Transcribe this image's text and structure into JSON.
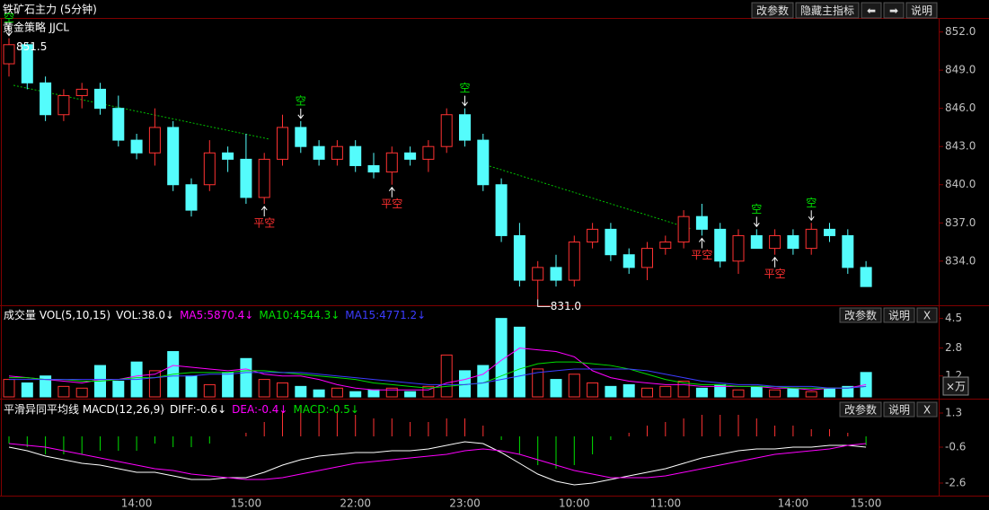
{
  "app": {
    "title": "铁矿石主力 (5分钟)",
    "strategy": "黄金策略 JJCL",
    "buttons": [
      "改参数",
      "隐藏主指标",
      "⬅",
      "➡",
      "说明"
    ]
  },
  "chart_data": [
    {
      "type": "candlestick",
      "open": [
        849.5,
        851,
        848,
        845.5,
        847,
        847.5,
        846,
        843.5,
        842.5,
        844.5,
        840,
        840,
        842.5,
        842,
        839,
        842,
        844.5,
        843,
        842,
        843,
        841.5,
        841,
        842.5,
        842,
        843,
        845.5,
        843.5,
        840,
        836,
        832.5,
        833.5,
        832.5,
        835.5,
        836.5,
        834.5,
        833.5,
        835,
        835.5,
        837.5,
        836.5,
        834,
        836,
        835,
        836,
        835,
        836.5,
        836,
        833.5
      ],
      "high": [
        851.5,
        851.2,
        848.5,
        847.5,
        848,
        848,
        847,
        844,
        846,
        845,
        840.5,
        843.5,
        843,
        844,
        842.5,
        845.5,
        845,
        843.5,
        843.5,
        843.5,
        842.5,
        843,
        843,
        843.5,
        846,
        846,
        844,
        840.5,
        837,
        834,
        834.5,
        836,
        837,
        837,
        835,
        835.5,
        836,
        838,
        838.5,
        837,
        836.5,
        836.5,
        836.5,
        836.5,
        837,
        837,
        836.5,
        834
      ],
      "low": [
        848.5,
        847.5,
        845,
        845,
        846,
        845.5,
        843,
        842,
        841.5,
        839.5,
        837.5,
        839.5,
        841,
        838.5,
        838.5,
        841.5,
        842.5,
        841.5,
        841.5,
        841,
        840.5,
        840,
        841.5,
        841,
        842.5,
        843,
        839.5,
        835.5,
        832,
        831,
        832,
        832,
        835,
        834,
        833,
        832.5,
        834.5,
        835,
        836,
        833.5,
        833,
        835,
        834.5,
        834.5,
        834.5,
        835.5,
        833,
        832
      ],
      "close": [
        851,
        848,
        845.5,
        847,
        847.5,
        846,
        843.5,
        842.5,
        844.5,
        840,
        838,
        842.5,
        842,
        839,
        842,
        844.5,
        843,
        842,
        843,
        841.5,
        841,
        842.5,
        842,
        843,
        845.5,
        843.5,
        840,
        836,
        832.5,
        833.5,
        832.5,
        835.5,
        836.5,
        834.5,
        833.5,
        835,
        835.5,
        837.5,
        836.5,
        834,
        836,
        835,
        836,
        835,
        836.5,
        836,
        833.5,
        832
      ],
      "up_color": "#ff3232",
      "down_color": "#54fcfc",
      "short_signals": [
        "空",
        null,
        null,
        null,
        null,
        null,
        null,
        null,
        null,
        null,
        null,
        null,
        null,
        null,
        null,
        null,
        "空",
        null,
        null,
        null,
        null,
        null,
        null,
        null,
        null,
        "空",
        null,
        null,
        null,
        null,
        null,
        null,
        null,
        null,
        null,
        null,
        null,
        null,
        null,
        null,
        null,
        "空",
        null,
        null,
        "空",
        null,
        null,
        null
      ],
      "cover_signals": [
        null,
        null,
        null,
        null,
        null,
        null,
        null,
        null,
        null,
        null,
        null,
        null,
        null,
        null,
        "平空",
        null,
        null,
        null,
        null,
        null,
        null,
        "平空",
        null,
        null,
        null,
        null,
        null,
        null,
        null,
        null,
        null,
        null,
        null,
        null,
        null,
        null,
        null,
        null,
        "平空",
        null,
        null,
        null,
        "平空",
        null,
        null,
        null,
        null,
        null
      ],
      "short_color": "#00e000",
      "cover_color": "#ff3030",
      "max_label": 851.5,
      "min_label": {
        "value": 831,
        "label": "831.0"
      },
      "ylim": [
        830.6,
        853.1
      ],
      "yticks": [
        {
          "value": 852,
          "label": "852.0"
        },
        {
          "value": 849,
          "label": "849.0"
        },
        {
          "value": 846,
          "label": "846.0"
        },
        {
          "value": 843,
          "label": "843.0"
        },
        {
          "value": 840,
          "label": "840.0"
        },
        {
          "value": 837,
          "label": "837.0"
        },
        {
          "value": 834,
          "label": "834.0"
        }
      ]
    },
    {
      "type": "volume",
      "title": "成交量 VOL(5,10,15)",
      "buttons": [
        "改参数",
        "说明",
        "X"
      ],
      "unit_button": "×万",
      "series": [
        {
          "name": "VOL:38.0↓",
          "color": "#ffffff",
          "values": [
            1.0,
            0.8,
            1.2,
            0.6,
            0.5,
            1.8,
            0.9,
            2.0,
            1.5,
            2.6,
            1.2,
            0.7,
            1.4,
            2.2,
            1.0,
            0.8,
            0.6,
            0.4,
            0.5,
            0.3,
            0.4,
            0.5,
            0.3,
            0.6,
            2.4,
            1.5,
            1.8,
            4.5,
            4.0,
            1.6,
            1.0,
            1.3,
            0.8,
            0.6,
            0.7,
            0.5,
            0.6,
            0.9,
            0.5,
            0.7,
            0.4,
            0.6,
            0.4,
            0.5,
            0.3,
            0.5,
            0.6,
            1.4
          ]
        },
        {
          "name": "MA5:5870.4↓",
          "color": "#ff00ff",
          "values": [
            1.2,
            1.1,
            1.0,
            0.9,
            0.8,
            1.0,
            1.0,
            1.2,
            1.3,
            1.8,
            1.7,
            1.6,
            1.5,
            1.6,
            1.3,
            1.2,
            1.2,
            1.0,
            0.7,
            0.5,
            0.4,
            0.4,
            0.4,
            0.4,
            0.8,
            1.0,
            1.3,
            2.1,
            2.8,
            2.7,
            2.6,
            2.3,
            1.5,
            1.1,
            0.9,
            0.8,
            0.7,
            0.7,
            0.6,
            0.6,
            0.6,
            0.6,
            0.5,
            0.5,
            0.4,
            0.5,
            0.5,
            0.7
          ]
        },
        {
          "name": "MA10:4544.3↓",
          "color": "#00e000",
          "values": [
            1.1,
            1.1,
            1.0,
            1.0,
            0.9,
            0.9,
            1.0,
            1.1,
            1.1,
            1.3,
            1.4,
            1.4,
            1.4,
            1.5,
            1.5,
            1.4,
            1.3,
            1.2,
            1.1,
            1.0,
            0.8,
            0.7,
            0.6,
            0.5,
            0.6,
            0.7,
            0.8,
            1.2,
            1.6,
            1.9,
            2.0,
            2.0,
            1.9,
            1.8,
            1.6,
            1.3,
            1.0,
            0.8,
            0.7,
            0.7,
            0.6,
            0.6,
            0.6,
            0.5,
            0.5,
            0.5,
            0.5,
            0.6
          ]
        },
        {
          "name": "MA15:4771.2↓",
          "color": "#3c3cff",
          "values": [
            1.0,
            1.0,
            1.0,
            1.0,
            1.0,
            1.0,
            1.0,
            1.0,
            1.1,
            1.2,
            1.2,
            1.3,
            1.3,
            1.4,
            1.4,
            1.4,
            1.4,
            1.3,
            1.2,
            1.1,
            1.0,
            0.9,
            0.8,
            0.7,
            0.7,
            0.7,
            0.8,
            1.0,
            1.2,
            1.4,
            1.5,
            1.6,
            1.6,
            1.6,
            1.6,
            1.5,
            1.3,
            1.1,
            0.9,
            0.8,
            0.7,
            0.7,
            0.6,
            0.6,
            0.6,
            0.5,
            0.5,
            0.6
          ]
        }
      ],
      "ylim": [
        0,
        5.1
      ],
      "yticks": [
        4.5,
        2.8,
        1.2
      ]
    },
    {
      "type": "macd",
      "title": "平滑异同平均线 MACD(12,26,9)",
      "buttons": [
        "改参数",
        "说明",
        "X"
      ],
      "series": [
        {
          "name": "DIFF:-0.6↓",
          "color": "#ffffff",
          "values": [
            -0.6,
            -0.8,
            -1.1,
            -1.3,
            -1.5,
            -1.6,
            -1.8,
            -2.0,
            -2.0,
            -2.2,
            -2.4,
            -2.4,
            -2.3,
            -2.3,
            -2.0,
            -1.6,
            -1.3,
            -1.1,
            -1.0,
            -0.9,
            -0.9,
            -0.8,
            -0.8,
            -0.7,
            -0.5,
            -0.3,
            -0.4,
            -0.9,
            -1.5,
            -2.1,
            -2.5,
            -2.7,
            -2.6,
            -2.4,
            -2.2,
            -2.0,
            -1.8,
            -1.5,
            -1.2,
            -1.0,
            -0.8,
            -0.7,
            -0.7,
            -0.6,
            -0.6,
            -0.5,
            -0.5,
            -0.6
          ]
        },
        {
          "name": "DEA:-0.4↓",
          "color": "#ff00ff",
          "values": [
            -0.4,
            -0.5,
            -0.6,
            -0.8,
            -1.0,
            -1.2,
            -1.4,
            -1.6,
            -1.8,
            -1.9,
            -2.1,
            -2.2,
            -2.3,
            -2.4,
            -2.4,
            -2.3,
            -2.1,
            -1.9,
            -1.7,
            -1.5,
            -1.4,
            -1.3,
            -1.2,
            -1.1,
            -1.0,
            -0.8,
            -0.7,
            -0.8,
            -1.0,
            -1.3,
            -1.6,
            -1.9,
            -2.1,
            -2.3,
            -2.3,
            -2.3,
            -2.2,
            -2.0,
            -1.8,
            -1.6,
            -1.4,
            -1.2,
            -1.0,
            -0.9,
            -0.8,
            -0.7,
            -0.5,
            -0.4
          ]
        },
        {
          "name": "MACD:-0.5↓",
          "color": "#00e000",
          "up_color": "#ff3232",
          "down_color": "#00e000",
          "values": [
            -0.4,
            -0.6,
            -1.0,
            -1.0,
            -1.0,
            -0.8,
            -0.8,
            -0.8,
            -0.4,
            -0.6,
            -0.6,
            -0.4,
            0,
            0.2,
            0.8,
            1.4,
            1.6,
            1.6,
            1.4,
            1.2,
            1.0,
            1.0,
            0.8,
            0.8,
            1.0,
            1.0,
            0.6,
            -0.2,
            -1.0,
            -1.6,
            -1.8,
            -1.6,
            -1.0,
            -0.2,
            0.2,
            0.6,
            0.8,
            1.0,
            1.2,
            1.2,
            1.2,
            1.0,
            0.6,
            0.6,
            0.4,
            0.4,
            0.2,
            -0.5
          ]
        }
      ],
      "categories": [
        null,
        null,
        null,
        null,
        null,
        null,
        null,
        "14:00",
        null,
        null,
        null,
        null,
        null,
        "15:00",
        null,
        null,
        null,
        null,
        null,
        "22:00",
        null,
        null,
        null,
        null,
        null,
        "23:00",
        null,
        null,
        null,
        null,
        null,
        "10:00",
        null,
        null,
        null,
        null,
        "11:00",
        null,
        null,
        null,
        null,
        null,
        null,
        "14:00",
        null,
        null,
        null,
        "15:00"
      ],
      "ylim": [
        -3.3,
        1.95
      ],
      "yticks": [
        1.3,
        -0.6,
        -2.6
      ]
    }
  ]
}
